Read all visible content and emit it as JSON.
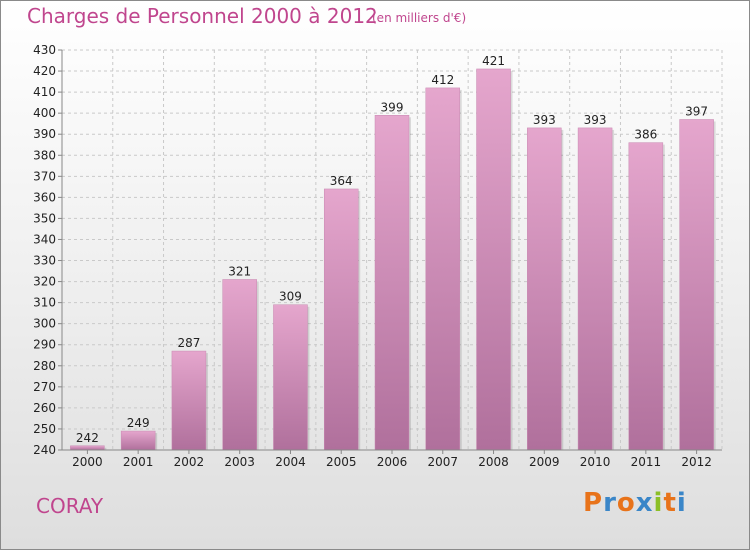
{
  "title": "Charges de Personnel 2000 à 2012",
  "subtitle": "(en milliers d'€)",
  "place": "CORAY",
  "logo": {
    "text": "Proxiti",
    "letters": [
      "P",
      "r",
      "o",
      "x",
      "i",
      "t",
      "i"
    ],
    "colors": [
      "#e8731a",
      "#3a86c8",
      "#e8731a",
      "#3a86c8",
      "#8cbf26",
      "#e8731a",
      "#3a86c8"
    ]
  },
  "colors": {
    "accent": "#c0468e",
    "bar_top": "#e5a6cd",
    "bar_bottom": "#b0709c",
    "grid": "#c9c9c9",
    "axis": "#888888"
  },
  "chart_data": {
    "type": "bar",
    "title": "Charges de Personnel 2000 à 2012",
    "subtitle": "(en milliers d'€)",
    "xlabel": "",
    "ylabel": "",
    "categories": [
      "2000",
      "2001",
      "2002",
      "2003",
      "2004",
      "2005",
      "2006",
      "2007",
      "2008",
      "2009",
      "2010",
      "2011",
      "2012"
    ],
    "values": [
      242,
      249,
      287,
      321,
      309,
      364,
      399,
      412,
      421,
      393,
      393,
      386,
      397
    ],
    "ylim": [
      240,
      430
    ],
    "yticks": [
      240,
      250,
      260,
      270,
      280,
      290,
      300,
      310,
      320,
      330,
      340,
      350,
      360,
      370,
      380,
      390,
      400,
      410,
      420,
      430
    ],
    "grid": true,
    "legend": "none"
  }
}
